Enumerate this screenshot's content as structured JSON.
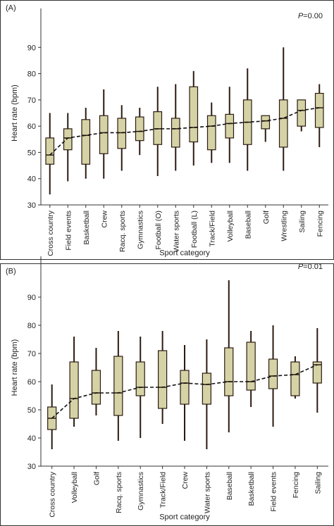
{
  "colors": {
    "box_fill": "#d5d3a6",
    "box_stroke": "#2b1a10",
    "trend": "#111111"
  },
  "chart_data": [
    {
      "type": "box",
      "panel_label": "(A)",
      "p_prefix": "P",
      "p_value": "=0.00",
      "xlabel": "Sport category",
      "ylabel": "Heart rate (bpm)",
      "ylim": [
        30,
        100
      ],
      "yticks": [
        30,
        40,
        50,
        60,
        70,
        80,
        90
      ],
      "grid": false,
      "categories": [
        "Cross country",
        "Field events",
        "Basketball",
        "Crew",
        "Racq. sports",
        "Gymnastics",
        "Football (O)",
        "Water sports",
        "Football (L)",
        "Track/Field",
        "Volleyball",
        "Baseball",
        "Golf",
        "Wrestling",
        "Sailing",
        "Fencing"
      ],
      "boxes": [
        {
          "min": 34,
          "q1": 45.5,
          "median": 49,
          "q3": 55.5,
          "max": 65
        },
        {
          "min": 39,
          "q1": 51,
          "median": 55.5,
          "q3": 59,
          "max": 65
        },
        {
          "min": 40,
          "q1": 45.5,
          "median": 56.5,
          "q3": 62.5,
          "max": 67
        },
        {
          "min": 40,
          "q1": 49.5,
          "median": 57.5,
          "q3": 64,
          "max": 74
        },
        {
          "min": 43,
          "q1": 51.5,
          "median": 57.5,
          "q3": 63,
          "max": 68
        },
        {
          "min": 49,
          "q1": 54.5,
          "median": 58,
          "q3": 63.5,
          "max": 67
        },
        {
          "min": 41,
          "q1": 53,
          "median": 59,
          "q3": 65.5,
          "max": 75
        },
        {
          "min": 43,
          "q1": 52,
          "median": 59,
          "q3": 63,
          "max": 76
        },
        {
          "min": 45,
          "q1": 54,
          "median": 59.5,
          "q3": 75,
          "max": 81
        },
        {
          "min": 46,
          "q1": 51,
          "median": 60,
          "q3": 64,
          "max": 69
        },
        {
          "min": 46,
          "q1": 55.5,
          "median": 61,
          "q3": 64.5,
          "max": 75
        },
        {
          "min": 43,
          "q1": 53,
          "median": 61.5,
          "q3": 70,
          "max": 82
        },
        {
          "min": 54,
          "q1": 59,
          "median": 62,
          "q3": 64,
          "max": 64
        },
        {
          "min": 43,
          "q1": 52,
          "median": 63,
          "q3": 70,
          "max": 90
        },
        {
          "min": 58,
          "q1": 60,
          "median": 66,
          "q3": 70,
          "max": 70
        },
        {
          "min": 52,
          "q1": 59.5,
          "median": 67,
          "q3": 72.5,
          "max": 76
        }
      ]
    },
    {
      "type": "box",
      "panel_label": "(B)",
      "p_prefix": "P",
      "p_value": "=0.01",
      "xlabel": "Sport category",
      "ylabel": "Heart rate (bpm)",
      "ylim": [
        30,
        100
      ],
      "yticks": [
        30,
        40,
        50,
        60,
        70,
        80,
        90
      ],
      "grid": false,
      "categories": [
        "Cross country",
        "Volleyball",
        "Golf",
        "Racq. sports",
        "Gymnastics",
        "Track/Field",
        "Crew",
        "Water sports",
        "Baseball",
        "Basketball",
        "Field events",
        "Fencing",
        "Sailing"
      ],
      "boxes": [
        {
          "min": 36,
          "q1": 43,
          "median": 47,
          "q3": 51,
          "max": 59
        },
        {
          "min": 44,
          "q1": 47,
          "median": 54,
          "q3": 67,
          "max": 76
        },
        {
          "min": 48,
          "q1": 52,
          "median": 56,
          "q3": 64,
          "max": 72
        },
        {
          "min": 39,
          "q1": 48,
          "median": 56,
          "q3": 69,
          "max": 78
        },
        {
          "min": 40,
          "q1": 55,
          "median": 58,
          "q3": 67,
          "max": 76
        },
        {
          "min": 45,
          "q1": 50.5,
          "median": 58,
          "q3": 71,
          "max": 78
        },
        {
          "min": 39,
          "q1": 52,
          "median": 59.5,
          "q3": 64,
          "max": 73
        },
        {
          "min": 36,
          "q1": 52,
          "median": 59,
          "q3": 63,
          "max": 75
        },
        {
          "min": 42,
          "q1": 55,
          "median": 60,
          "q3": 72,
          "max": 96
        },
        {
          "min": 51,
          "q1": 57,
          "median": 60,
          "q3": 74,
          "max": 78
        },
        {
          "min": 44,
          "q1": 57.5,
          "median": 62,
          "q3": 68,
          "max": 80
        },
        {
          "min": 54,
          "q1": 55,
          "median": 62.5,
          "q3": 67,
          "max": 69
        },
        {
          "min": 49,
          "q1": 59.5,
          "median": 66,
          "q3": 67,
          "max": 79
        }
      ]
    }
  ]
}
